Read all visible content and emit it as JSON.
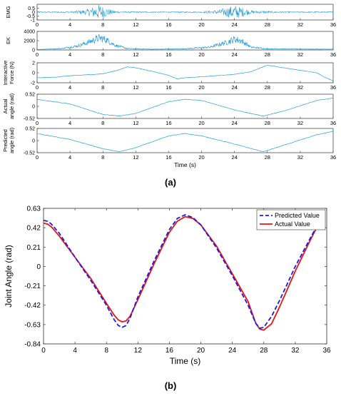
{
  "figure": {
    "label_a": "(a)",
    "label_b": "(b)"
  },
  "colors": {
    "signal": "#2a9fd8",
    "predicted": "#1a1aee",
    "actual": "#ee1111",
    "axis": "#333333"
  },
  "chart_data": [
    {
      "type": "line",
      "title": "",
      "xlabel": "",
      "ylabel": "EMG",
      "xlim": [
        0,
        36
      ],
      "ylim": [
        -1,
        1
      ],
      "xticks": [
        0,
        4,
        8,
        12,
        16,
        20,
        24,
        28,
        32,
        36
      ],
      "yticks": [
        "0.5",
        "0",
        "-0.5",
        "-1"
      ],
      "series": [
        {
          "x": [
            0,
            4,
            6,
            7,
            7.6,
            8,
            9,
            10,
            14,
            20,
            22,
            23,
            24,
            25,
            26,
            30,
            36
          ],
          "envelope": [
            0.08,
            0.08,
            0.35,
            0.8,
            1.0,
            0.8,
            0.3,
            0.1,
            0.08,
            0.08,
            0.25,
            0.6,
            0.9,
            0.6,
            0.2,
            0.08,
            0.08
          ]
        }
      ]
    },
    {
      "type": "line",
      "title": "",
      "xlabel": "",
      "ylabel": "EK",
      "xlim": [
        0,
        36
      ],
      "ylim": [
        0,
        4000
      ],
      "xticks": [
        0,
        4,
        8,
        12,
        16,
        20,
        24,
        28,
        32,
        36
      ],
      "yticks": [
        "4000",
        "2000",
        "0"
      ],
      "series": [
        {
          "x": [
            0,
            3,
            5,
            6,
            7,
            7.6,
            8.4,
            9.5,
            11,
            14,
            18,
            21,
            23,
            24,
            24.8,
            26,
            28,
            32,
            36
          ],
          "y": [
            100,
            300,
            900,
            1500,
            2200,
            2600,
            2200,
            1000,
            300,
            150,
            250,
            600,
            1600,
            2300,
            2000,
            600,
            250,
            200,
            150
          ]
        }
      ]
    },
    {
      "type": "line",
      "title": "",
      "xlabel": "",
      "ylabel": "Interactive Force (N)",
      "xlim": [
        0,
        36
      ],
      "ylim": [
        -2,
        2
      ],
      "xticks": [
        0,
        4,
        8,
        12,
        16,
        20,
        24,
        28,
        32,
        36
      ],
      "yticks": [
        "2",
        "0",
        "-2"
      ],
      "series": [
        {
          "x": [
            0,
            2,
            4,
            8,
            10,
            11,
            12,
            14,
            16,
            17,
            18,
            20,
            24,
            26,
            27,
            28,
            30,
            34,
            35,
            36
          ],
          "y": [
            -1.0,
            -0.9,
            -0.6,
            -0.2,
            0.6,
            1.2,
            1.0,
            0.3,
            -0.5,
            -1.2,
            -1.0,
            -0.8,
            -0.3,
            0.2,
            0.9,
            1.5,
            1.0,
            0.0,
            -0.9,
            -1.6
          ]
        }
      ]
    },
    {
      "type": "line",
      "title": "",
      "xlabel": "",
      "ylabel": "Actual angle (rad)",
      "xlim": [
        0,
        36
      ],
      "ylim": [
        -0.52,
        0.52
      ],
      "xticks": [
        0,
        4,
        8,
        12,
        16,
        20,
        24,
        28,
        32,
        36
      ],
      "yticks": [
        "0.52",
        "0",
        "-0.52"
      ],
      "series": [
        {
          "x": [
            0,
            4,
            8,
            10,
            12,
            16,
            18,
            20,
            24,
            27.5,
            30,
            34,
            36
          ],
          "y": [
            0.3,
            0.1,
            -0.35,
            -0.42,
            -0.3,
            0.2,
            0.3,
            0.25,
            -0.15,
            -0.42,
            -0.2,
            0.25,
            0.35
          ]
        }
      ]
    },
    {
      "type": "line",
      "title": "",
      "xlabel": "Time (s)",
      "ylabel": "Predicted angle (rad)",
      "xlim": [
        0,
        36
      ],
      "ylim": [
        -0.52,
        0.52
      ],
      "xticks": [
        0,
        4,
        8,
        12,
        16,
        20,
        24,
        28,
        32,
        36
      ],
      "yticks": [
        "0.52",
        "0",
        "-0.52"
      ],
      "series": [
        {
          "x": [
            0,
            4,
            8,
            10,
            12,
            16,
            18,
            20,
            24,
            27.5,
            30,
            34,
            36
          ],
          "y": [
            0.3,
            0.05,
            -0.35,
            -0.48,
            -0.3,
            0.2,
            0.3,
            0.2,
            -0.15,
            -0.48,
            -0.2,
            0.25,
            0.4
          ]
        }
      ]
    },
    {
      "type": "line",
      "title": "",
      "xlabel": "Time (s)",
      "ylabel": "Joint Angle (rad)",
      "xlim": [
        0,
        36
      ],
      "ylim": [
        -0.84,
        0.63
      ],
      "xticks": [
        0,
        4,
        8,
        12,
        16,
        20,
        24,
        28,
        32,
        36
      ],
      "yticks": [
        "0.63",
        "0.42",
        "0.21",
        "0",
        "-0.21",
        "-0.42",
        "-0.63",
        "-0.84"
      ],
      "legend": "top-right",
      "series": [
        {
          "name": "Predicted Value",
          "x": [
            0,
            0.5,
            1,
            2,
            4,
            6,
            8,
            9,
            9.5,
            10,
            10.5,
            11,
            12,
            14,
            16,
            17,
            18,
            19,
            20,
            22,
            24,
            26,
            27,
            27.5,
            28,
            29,
            30,
            32,
            34,
            35
          ],
          "y": [
            0.5,
            0.49,
            0.46,
            0.36,
            0.1,
            -0.15,
            -0.42,
            -0.58,
            -0.64,
            -0.66,
            -0.64,
            -0.56,
            -0.33,
            0.05,
            0.4,
            0.52,
            0.56,
            0.53,
            0.45,
            0.2,
            -0.1,
            -0.42,
            -0.62,
            -0.67,
            -0.66,
            -0.54,
            -0.37,
            0.0,
            0.32,
            0.48
          ]
        },
        {
          "name": "Actual Value",
          "x": [
            0,
            0.5,
            1,
            2,
            4,
            6,
            8,
            9,
            9.5,
            10,
            10.5,
            11,
            12,
            14,
            16,
            17,
            18,
            19,
            20,
            22,
            24,
            26,
            27,
            27.5,
            28,
            29,
            30,
            32,
            34,
            35
          ],
          "y": [
            0.47,
            0.46,
            0.43,
            0.33,
            0.1,
            -0.13,
            -0.4,
            -0.53,
            -0.58,
            -0.6,
            -0.59,
            -0.54,
            -0.36,
            0.02,
            0.37,
            0.49,
            0.54,
            0.52,
            0.45,
            0.22,
            -0.08,
            -0.38,
            -0.62,
            -0.68,
            -0.69,
            -0.62,
            -0.44,
            -0.05,
            0.3,
            0.47
          ]
        }
      ]
    }
  ]
}
